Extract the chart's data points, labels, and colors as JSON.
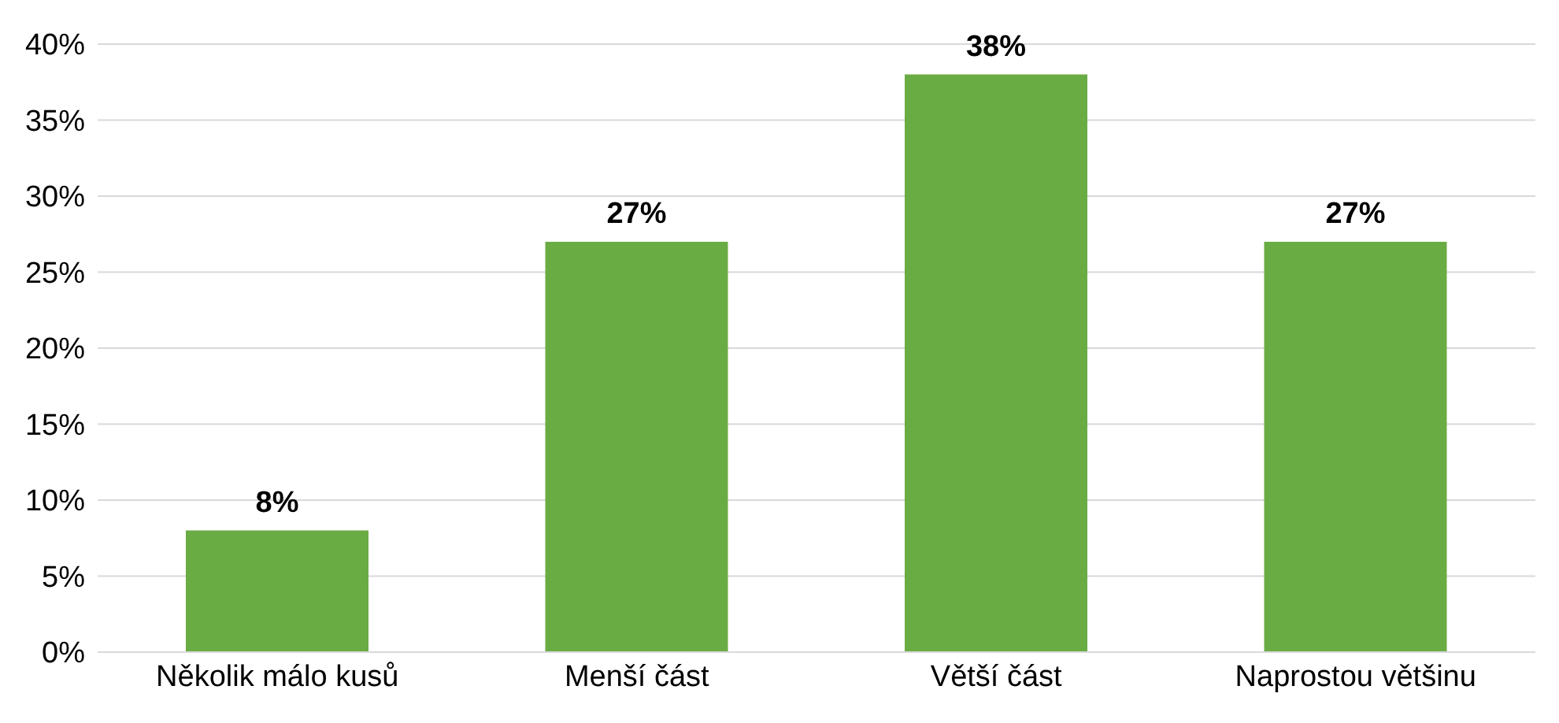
{
  "chart_data": {
    "type": "bar",
    "categories": [
      "Několik málo kusů",
      "Menší část",
      "Větší část",
      "Naprostou většinu"
    ],
    "values": [
      8,
      27,
      38,
      27
    ],
    "value_labels": [
      "8%",
      "27%",
      "38%",
      "27%"
    ],
    "color": "#6aac44",
    "grid": "y",
    "ylim": [
      0,
      40
    ],
    "yticks": [
      {
        "value": 0,
        "label": "0%"
      },
      {
        "value": 5,
        "label": "5%"
      },
      {
        "value": 10,
        "label": "10%"
      },
      {
        "value": 15,
        "label": "15%"
      },
      {
        "value": 20,
        "label": "20%"
      },
      {
        "value": 25,
        "label": "25%"
      },
      {
        "value": 30,
        "label": "30%"
      },
      {
        "value": 35,
        "label": "35%"
      },
      {
        "value": 40,
        "label": "40%"
      }
    ]
  }
}
